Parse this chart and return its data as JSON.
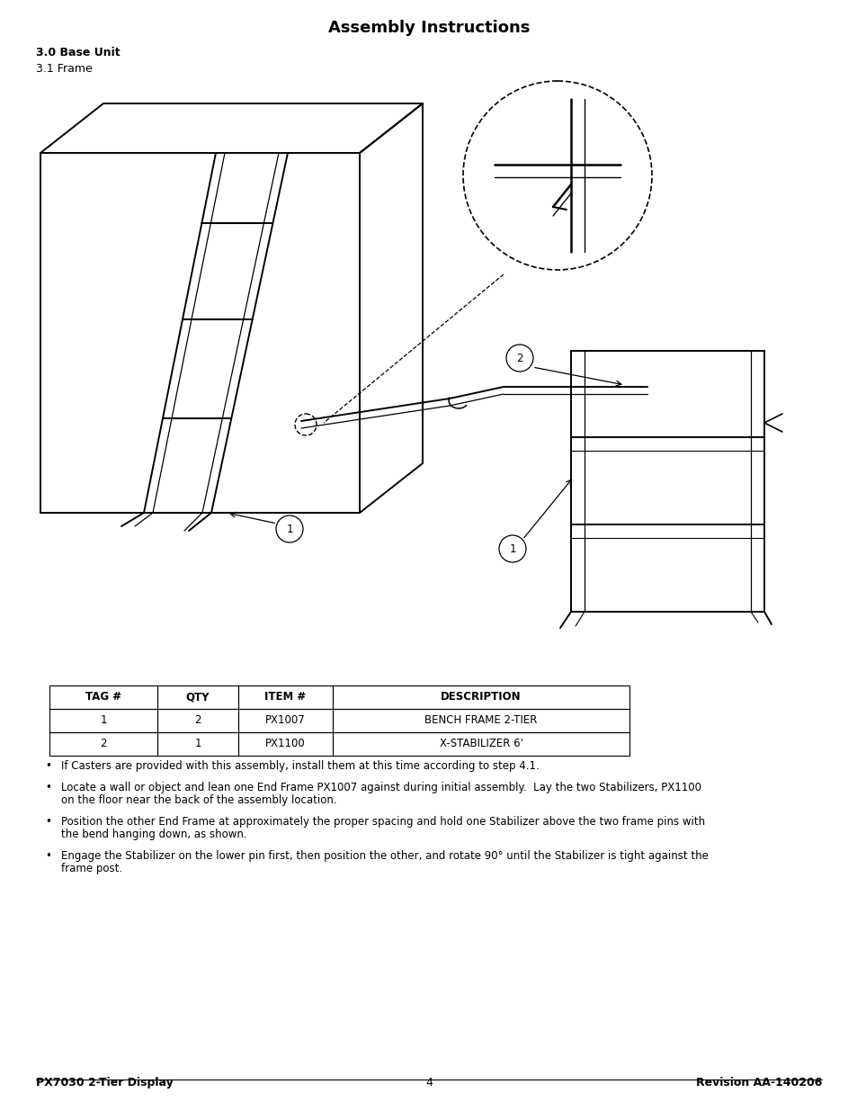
{
  "title": "Assembly Instructions",
  "section_bold": "3.0 Base Unit",
  "section_normal": "3.1 Frame",
  "table_headers": [
    "TAG #",
    "QTY",
    "ITEM #",
    "DESCRIPTION"
  ],
  "table_rows": [
    [
      "1",
      "2",
      "PX1007",
      "BENCH FRAME 2-TIER"
    ],
    [
      "2",
      "1",
      "PX1100",
      "X-STABILIZER 6'"
    ]
  ],
  "bullet1": "If Casters are provided with this assembly, install them at this time according to step 4.1.",
  "bullet2a": "Locate a wall or object and lean one End Frame PX1007 against during initial assembly.  Lay the two Stabilizers, PX1100",
  "bullet2b": "on the floor near the back of the assembly location.",
  "bullet3a": "Position the other End Frame at approximately the proper spacing and hold one Stabilizer above the two frame pins with",
  "bullet3b": "the bend hanging down, as shown.",
  "bullet4a": "Engage the Stabilizer on the lower pin first, then position the other, and rotate 90° until the Stabilizer is tight against the",
  "bullet4b": "frame post.",
  "footer_left": "PX7030 2-Tier Display",
  "footer_center": "4",
  "footer_right": "Revision AA-140206",
  "bg_color": "#ffffff"
}
